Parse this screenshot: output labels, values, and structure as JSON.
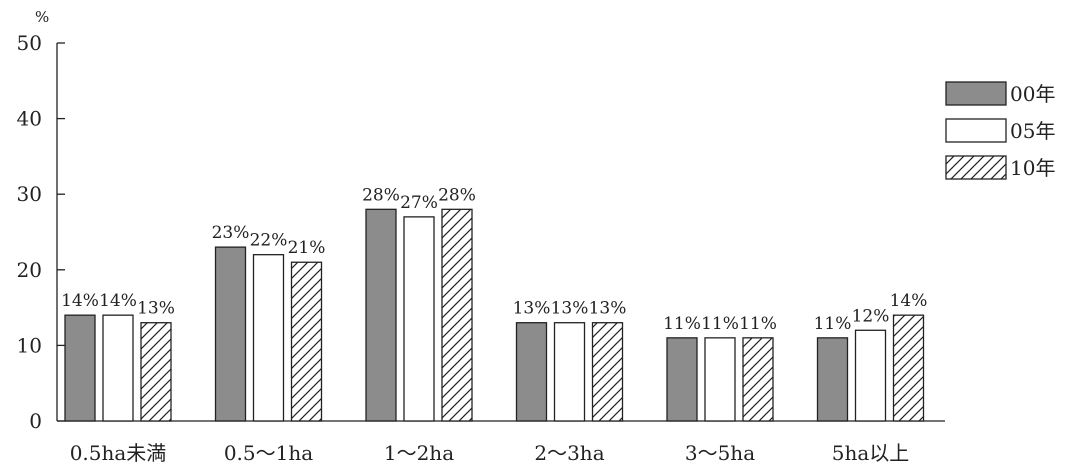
{
  "chart_data": {
    "type": "bar",
    "ylabel": "%",
    "ylim": [
      0,
      50
    ],
    "yticks": [
      0,
      10,
      20,
      30,
      40,
      50
    ],
    "grid": false,
    "legend_position": "top-right",
    "categories": [
      "0.5ha未満",
      "0.5〜1ha",
      "1〜2ha",
      "2〜3ha",
      "3〜5ha",
      "5ha以上"
    ],
    "series": [
      {
        "name": "00年",
        "values": [
          14,
          23,
          28,
          13,
          11,
          11
        ],
        "labels": [
          "14%",
          "23%",
          "28%",
          "13%",
          "11%",
          "11%"
        ],
        "fill": "#8c8c8c",
        "pattern": "solid"
      },
      {
        "name": "05年",
        "values": [
          14,
          22,
          27,
          13,
          11,
          12
        ],
        "labels": [
          "14%",
          "22%",
          "27%",
          "13%",
          "11%",
          "12%"
        ],
        "fill": "#ffffff",
        "pattern": "solid"
      },
      {
        "name": "10年",
        "values": [
          13,
          21,
          28,
          13,
          11,
          14
        ],
        "labels": [
          "13%",
          "21%",
          "28%",
          "13%",
          "11%",
          "14%"
        ],
        "fill": "#ffffff",
        "pattern": "hatch"
      }
    ],
    "colors": {
      "axis": "#222222",
      "bar_stroke": "#222222"
    }
  }
}
